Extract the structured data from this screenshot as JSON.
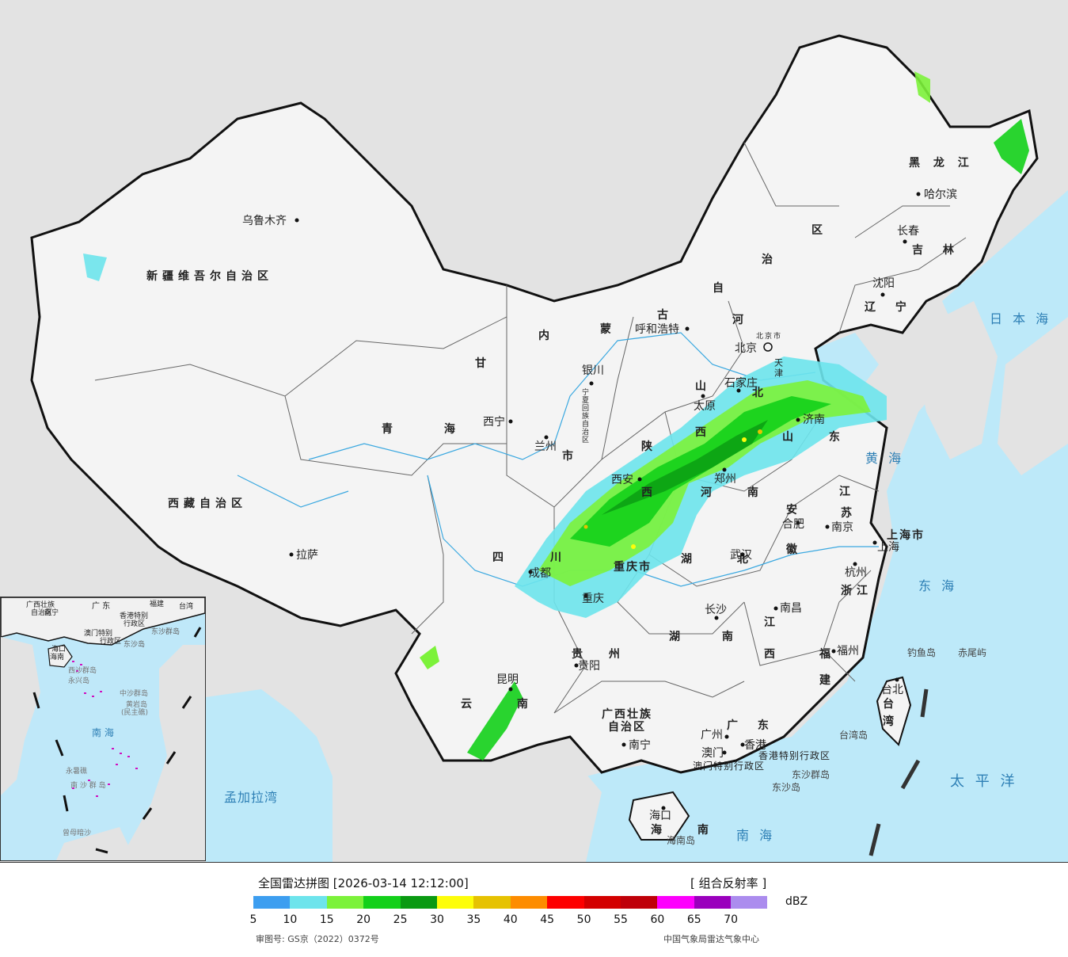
{
  "map": {
    "region_labels": [
      {
        "id": "xinjiang",
        "text": "新疆维吾尔自治区"
      },
      {
        "id": "xizang",
        "text": "西藏自治区"
      },
      {
        "id": "qinghai",
        "text": "青 海"
      },
      {
        "id": "gansu",
        "text": "甘"
      },
      {
        "id": "neimenggu-nei",
        "text": "内"
      },
      {
        "id": "neimenggu-meng",
        "text": "蒙"
      },
      {
        "id": "neimenggu-gu",
        "text": "古"
      },
      {
        "id": "neimenggu-zi",
        "text": "自"
      },
      {
        "id": "neimenggu-zhi",
        "text": "治"
      },
      {
        "id": "neimenggu-qu",
        "text": "区"
      },
      {
        "id": "heilongjiang",
        "text": "黑 龙 江"
      },
      {
        "id": "jilin",
        "text": "吉 林"
      },
      {
        "id": "liaoning",
        "text": "辽 宁"
      },
      {
        "id": "hebei-he",
        "text": "河"
      },
      {
        "id": "hebei-bei",
        "text": "北"
      },
      {
        "id": "shanxi-shan",
        "text": "山"
      },
      {
        "id": "shanxi-xi",
        "text": "西"
      },
      {
        "id": "shandong",
        "text": "山 东"
      },
      {
        "id": "shaanxi-shan",
        "text": "陕"
      },
      {
        "id": "shaanxi-xi",
        "text": "西"
      },
      {
        "id": "henan",
        "text": "河 南"
      },
      {
        "id": "jiangsu-jiang",
        "text": "江"
      },
      {
        "id": "jiangsu-su",
        "text": "苏"
      },
      {
        "id": "anhui-an",
        "text": "安"
      },
      {
        "id": "anhui-hui",
        "text": "徽"
      },
      {
        "id": "hubei",
        "text": "湖 北"
      },
      {
        "id": "sichuan-si",
        "text": "四"
      },
      {
        "id": "sichuan-chuan",
        "text": "川"
      },
      {
        "id": "chongqing",
        "text": "重庆市"
      },
      {
        "id": "zhejiang",
        "text": "浙江"
      },
      {
        "id": "shanghai",
        "text": "上海市"
      },
      {
        "id": "jiangxi-jiang",
        "text": "江"
      },
      {
        "id": "jiangxi-xi",
        "text": "西"
      },
      {
        "id": "hunan",
        "text": "湖 南"
      },
      {
        "id": "guizhou",
        "text": "贵 州"
      },
      {
        "id": "yunnan",
        "text": "云 南"
      },
      {
        "id": "guangxi-1",
        "text": "广西壮族"
      },
      {
        "id": "guangxi-2",
        "text": "自治区"
      },
      {
        "id": "guangdong",
        "text": "广 东"
      },
      {
        "id": "fujian-fu",
        "text": "福"
      },
      {
        "id": "fujian-jian",
        "text": "建"
      },
      {
        "id": "taiwan-tai",
        "text": "台"
      },
      {
        "id": "taiwan-wan",
        "text": "湾"
      },
      {
        "id": "hainan",
        "text": "海 南"
      },
      {
        "id": "ningxia",
        "text": "宁夏回族自治区"
      },
      {
        "id": "beijing-s",
        "text": "北京市"
      },
      {
        "id": "tianjin",
        "text": "天津"
      },
      {
        "id": "gansu-shi",
        "text": "市"
      },
      {
        "id": "hk",
        "text": "香港特别行政区"
      },
      {
        "id": "macau",
        "text": "澳门特别行政区"
      }
    ],
    "cities": [
      {
        "id": "urumqi",
        "text": "乌鲁木齐"
      },
      {
        "id": "lhasa",
        "text": "拉萨"
      },
      {
        "id": "xining",
        "text": "西宁"
      },
      {
        "id": "lanzhou",
        "text": "兰州"
      },
      {
        "id": "yinchuan",
        "text": "银川"
      },
      {
        "id": "hohhot",
        "text": "呼和浩特"
      },
      {
        "id": "harbin",
        "text": "哈尔滨"
      },
      {
        "id": "changchun",
        "text": "长春"
      },
      {
        "id": "shenyang",
        "text": "沈阳"
      },
      {
        "id": "beijing",
        "text": "北京"
      },
      {
        "id": "shijiazhuang",
        "text": "石家庄"
      },
      {
        "id": "taiyuan",
        "text": "太原"
      },
      {
        "id": "jinan",
        "text": "济南"
      },
      {
        "id": "xian",
        "text": "西安"
      },
      {
        "id": "zhengzhou",
        "text": "郑州"
      },
      {
        "id": "hefei",
        "text": "合肥"
      },
      {
        "id": "nanjing",
        "text": "南京"
      },
      {
        "id": "shanghai-c",
        "text": "上海"
      },
      {
        "id": "hangzhou",
        "text": "杭州"
      },
      {
        "id": "wuhan",
        "text": "武汉"
      },
      {
        "id": "chengdu",
        "text": "成都"
      },
      {
        "id": "chongqing-c",
        "text": "重庆"
      },
      {
        "id": "changsha",
        "text": "长沙"
      },
      {
        "id": "nanchang",
        "text": "南昌"
      },
      {
        "id": "fuzhou",
        "text": "福州"
      },
      {
        "id": "guiyang",
        "text": "贵阳"
      },
      {
        "id": "kunming",
        "text": "昆明"
      },
      {
        "id": "nanning",
        "text": "南宁"
      },
      {
        "id": "guangzhou",
        "text": "广州"
      },
      {
        "id": "hongkong",
        "text": "香港"
      },
      {
        "id": "macao",
        "text": "澳门"
      },
      {
        "id": "haikou",
        "text": "海口"
      },
      {
        "id": "taipei",
        "text": "台北"
      }
    ],
    "sea_labels": [
      {
        "id": "japan-sea",
        "text": "日 本 海"
      },
      {
        "id": "yellow-sea",
        "text": "黄 海"
      },
      {
        "id": "east-sea",
        "text": "东 海"
      },
      {
        "id": "pacific",
        "text": "太 平 洋"
      },
      {
        "id": "south-sea",
        "text": "南 海"
      },
      {
        "id": "bengal",
        "text": "孟加拉湾"
      }
    ],
    "island_labels": [
      {
        "id": "diaoyu",
        "text": "钓鱼岛"
      },
      {
        "id": "chiwei",
        "text": "赤尾屿"
      },
      {
        "id": "taiwan-isl",
        "text": "台湾岛"
      },
      {
        "id": "hainan-isl",
        "text": "海南岛"
      },
      {
        "id": "dongsha-qd",
        "text": "东沙群岛"
      },
      {
        "id": "dongsha-d",
        "text": "东沙岛"
      }
    ]
  },
  "inset": {
    "labels": [
      {
        "id": "i-guangxi",
        "text": "广西壮族"
      },
      {
        "id": "i-zzq",
        "text": "自治区"
      },
      {
        "id": "i-gd",
        "text": "广 东"
      },
      {
        "id": "i-fj",
        "text": "福建"
      },
      {
        "id": "i-tw",
        "text": "台湾"
      },
      {
        "id": "i-nanning",
        "text": "南宁"
      },
      {
        "id": "i-hk",
        "text": "香港特别"
      },
      {
        "id": "i-hk2",
        "text": "行政区"
      },
      {
        "id": "i-macau",
        "text": "澳门特别"
      },
      {
        "id": "i-macau2",
        "text": "行政区"
      },
      {
        "id": "i-dongsha",
        "text": "东沙群岛"
      },
      {
        "id": "i-dongshadao",
        "text": "东沙岛"
      },
      {
        "id": "i-haikou",
        "text": "海口"
      },
      {
        "id": "i-hainan",
        "text": "海南"
      },
      {
        "id": "i-xisha",
        "text": "西沙群岛"
      },
      {
        "id": "i-yongxing",
        "text": "永兴岛"
      },
      {
        "id": "i-zhongsha",
        "text": "中沙群岛"
      },
      {
        "id": "i-huangyan",
        "text": "黄岩岛"
      },
      {
        "id": "i-minzhu",
        "text": "(民主礁)"
      },
      {
        "id": "i-nanhai",
        "text": "南 海"
      },
      {
        "id": "i-yongshu",
        "text": "永暑礁"
      },
      {
        "id": "i-nansha",
        "text": "南 沙 群 岛"
      },
      {
        "id": "i-zengmu",
        "text": "曾母暗沙"
      }
    ]
  },
  "legend": {
    "title": "全国雷达拼图 [2026-03-14 12:12:00]",
    "product": "[ 组合反射率 ]",
    "unit": "dBZ",
    "colors": [
      "#3d9ef0",
      "#6de4ec",
      "#7cf23a",
      "#13d01a",
      "#0a9a12",
      "#fdfd0a",
      "#e6c202",
      "#fd8c00",
      "#fd0000",
      "#d30000",
      "#bf0009",
      "#fd00fd",
      "#9a00bd",
      "#ab8cee"
    ],
    "ticks": [
      "5",
      "10",
      "15",
      "20",
      "25",
      "30",
      "35",
      "40",
      "45",
      "50",
      "55",
      "60",
      "65",
      "70"
    ],
    "review_number": "审图号: GS京（2022）0372号",
    "credit": "中国气象局雷达气象中心"
  }
}
